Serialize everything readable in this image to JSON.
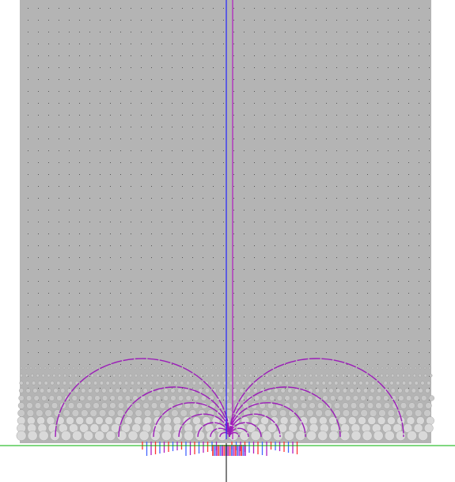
{
  "scene": {
    "background": "#ffffff",
    "plane_color": "#b4b4b4",
    "sphere_color": "#d9d9d9",
    "sphere_shadow": "#9a9a9a",
    "field_line_color": "#9b1cb8",
    "vertical_line_colors": [
      "#2222ff",
      "#b01cc0"
    ],
    "ground_line_color": "#00b000",
    "axis_line_color": "#000000",
    "vector_colors": [
      "#ff3333",
      "#4466ff",
      "#b01cc0"
    ],
    "field_arc_count": 7,
    "sphere_row_count": 10,
    "grid_dot_rows": 34,
    "grid_dot_cols": 40
  }
}
